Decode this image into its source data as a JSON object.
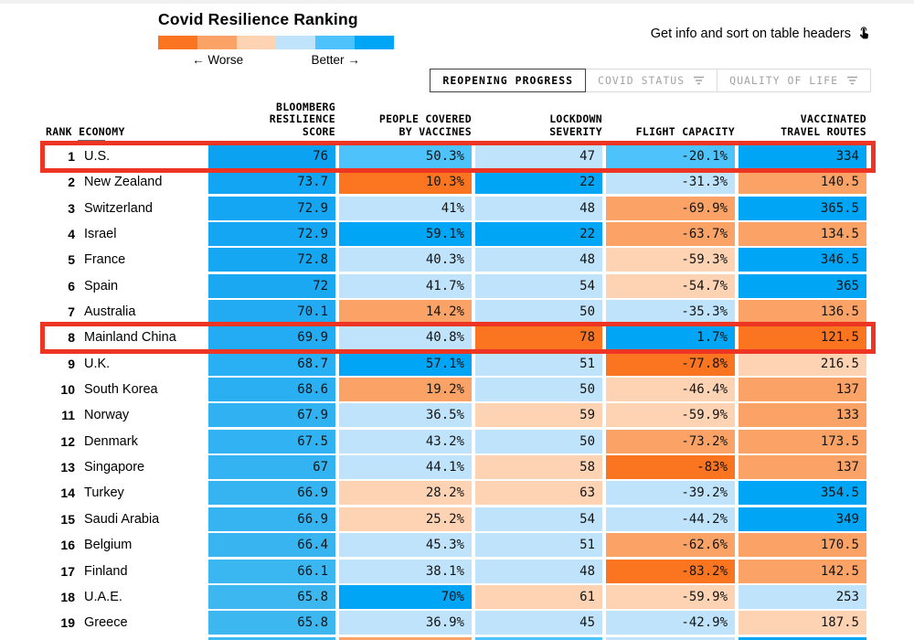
{
  "page": {
    "title": "Covid Resilience Ranking",
    "legend": {
      "worse_label": "← Worse",
      "better_label": "Better →",
      "colors": [
        "#fb7420",
        "#fba366",
        "#fdd3b4",
        "#bee3fb",
        "#4dc2fb",
        "#00a5f6"
      ]
    },
    "hint": {
      "text": "Get info and sort on table headers",
      "icon": "hand-pointer-icon"
    },
    "tabs": [
      {
        "label": "REOPENING PROGRESS",
        "active": true
      },
      {
        "label": "COVID STATUS",
        "active": false,
        "icon": "filter-icon"
      },
      {
        "label": "QUALITY OF LIFE",
        "active": false,
        "icon": "filter-icon"
      }
    ],
    "annotation_color": "#ee3524"
  },
  "table": {
    "headers": {
      "rank_economy": "RANK ECONOMY",
      "score": "BLOOMBERG\nRESILIENCE\nSCORE",
      "vaccines": "PEOPLE COVERED\nBY VACCINES",
      "lockdown": "LOCKDOWN\nSEVERITY",
      "flight": "FLIGHT CAPACITY",
      "routes": "VACCINATED\nTRAVEL ROUTES"
    },
    "rows": [
      {
        "rank": "1",
        "economy": "U.S.",
        "highlighted": true,
        "cells": [
          {
            "value": "76",
            "color": "#0ba2f2"
          },
          {
            "value": "50.3%",
            "color": "#4dc2fb"
          },
          {
            "value": "47",
            "color": "#bee3fb"
          },
          {
            "value": "-20.1%",
            "color": "#4dc2fb"
          },
          {
            "value": "334",
            "color": "#00a5f6"
          }
        ]
      },
      {
        "rank": "2",
        "economy": "New Zealand",
        "highlighted": false,
        "cells": [
          {
            "value": "73.7",
            "color": "#12a5f3"
          },
          {
            "value": "10.3%",
            "color": "#fb7420"
          },
          {
            "value": "22",
            "color": "#00a5f6"
          },
          {
            "value": "-31.3%",
            "color": "#bee3fb"
          },
          {
            "value": "140.5",
            "color": "#fba366"
          }
        ]
      },
      {
        "rank": "3",
        "economy": "Switzerland",
        "highlighted": false,
        "cells": [
          {
            "value": "72.9",
            "color": "#15a6f3"
          },
          {
            "value": "41%",
            "color": "#bee3fb"
          },
          {
            "value": "48",
            "color": "#bee3fb"
          },
          {
            "value": "-69.9%",
            "color": "#fba366"
          },
          {
            "value": "365.5",
            "color": "#00a5f6"
          }
        ]
      },
      {
        "rank": "4",
        "economy": "Israel",
        "highlighted": false,
        "cells": [
          {
            "value": "72.9",
            "color": "#15a6f3"
          },
          {
            "value": "59.1%",
            "color": "#00a5f6"
          },
          {
            "value": "22",
            "color": "#00a5f6"
          },
          {
            "value": "-63.7%",
            "color": "#fba366"
          },
          {
            "value": "134.5",
            "color": "#fba366"
          }
        ]
      },
      {
        "rank": "5",
        "economy": "France",
        "highlighted": false,
        "cells": [
          {
            "value": "72.8",
            "color": "#16a7f3"
          },
          {
            "value": "40.3%",
            "color": "#bee3fb"
          },
          {
            "value": "48",
            "color": "#bee3fb"
          },
          {
            "value": "-59.3%",
            "color": "#fdd3b4"
          },
          {
            "value": "346.5",
            "color": "#00a5f6"
          }
        ]
      },
      {
        "rank": "6",
        "economy": "Spain",
        "highlighted": false,
        "cells": [
          {
            "value": "72",
            "color": "#1aa8f3"
          },
          {
            "value": "41.7%",
            "color": "#bee3fb"
          },
          {
            "value": "54",
            "color": "#bee3fb"
          },
          {
            "value": "-54.7%",
            "color": "#fdd3b4"
          },
          {
            "value": "365",
            "color": "#00a5f6"
          }
        ]
      },
      {
        "rank": "7",
        "economy": "Australia",
        "highlighted": false,
        "cells": [
          {
            "value": "70.1",
            "color": "#22abf3"
          },
          {
            "value": "14.2%",
            "color": "#fba366"
          },
          {
            "value": "50",
            "color": "#bee3fb"
          },
          {
            "value": "-35.3%",
            "color": "#bee3fb"
          },
          {
            "value": "136.5",
            "color": "#fba366"
          }
        ]
      },
      {
        "rank": "8",
        "economy": "Mainland China",
        "highlighted": true,
        "cells": [
          {
            "value": "69.9",
            "color": "#23acf3"
          },
          {
            "value": "40.8%",
            "color": "#bee3fb"
          },
          {
            "value": "78",
            "color": "#fb7420"
          },
          {
            "value": "1.7%",
            "color": "#00a5f6"
          },
          {
            "value": "121.5",
            "color": "#fb7420"
          }
        ]
      },
      {
        "rank": "9",
        "economy": "U.K.",
        "highlighted": false,
        "cells": [
          {
            "value": "68.7",
            "color": "#29aff3"
          },
          {
            "value": "57.1%",
            "color": "#00a5f6"
          },
          {
            "value": "51",
            "color": "#bee3fb"
          },
          {
            "value": "-77.8%",
            "color": "#fb7420"
          },
          {
            "value": "216.5",
            "color": "#fdd3b4"
          }
        ]
      },
      {
        "rank": "10",
        "economy": "South Korea",
        "highlighted": false,
        "cells": [
          {
            "value": "68.6",
            "color": "#2aaff3"
          },
          {
            "value": "19.2%",
            "color": "#fba366"
          },
          {
            "value": "50",
            "color": "#bee3fb"
          },
          {
            "value": "-46.4%",
            "color": "#fdd3b4"
          },
          {
            "value": "137",
            "color": "#fba366"
          }
        ]
      },
      {
        "rank": "11",
        "economy": "Norway",
        "highlighted": false,
        "cells": [
          {
            "value": "67.9",
            "color": "#2fb1f2"
          },
          {
            "value": "36.5%",
            "color": "#bee3fb"
          },
          {
            "value": "59",
            "color": "#fdd3b4"
          },
          {
            "value": "-59.9%",
            "color": "#fdd3b4"
          },
          {
            "value": "133",
            "color": "#fba366"
          }
        ]
      },
      {
        "rank": "12",
        "economy": "Denmark",
        "highlighted": false,
        "cells": [
          {
            "value": "67.5",
            "color": "#31b2f2"
          },
          {
            "value": "43.2%",
            "color": "#bee3fb"
          },
          {
            "value": "50",
            "color": "#bee3fb"
          },
          {
            "value": "-73.2%",
            "color": "#fba366"
          },
          {
            "value": "173.5",
            "color": "#fba366"
          }
        ]
      },
      {
        "rank": "13",
        "economy": "Singapore",
        "highlighted": false,
        "cells": [
          {
            "value": "67",
            "color": "#34b3f2"
          },
          {
            "value": "44.1%",
            "color": "#bee3fb"
          },
          {
            "value": "58",
            "color": "#fdd3b4"
          },
          {
            "value": "-83%",
            "color": "#fb7420"
          },
          {
            "value": "137",
            "color": "#fba366"
          }
        ]
      },
      {
        "rank": "14",
        "economy": "Turkey",
        "highlighted": false,
        "cells": [
          {
            "value": "66.9",
            "color": "#35b4f1"
          },
          {
            "value": "28.2%",
            "color": "#fdd3b4"
          },
          {
            "value": "63",
            "color": "#fdd3b4"
          },
          {
            "value": "-39.2%",
            "color": "#bee3fb"
          },
          {
            "value": "354.5",
            "color": "#00a5f6"
          }
        ]
      },
      {
        "rank": "15",
        "economy": "Saudi Arabia",
        "highlighted": false,
        "cells": [
          {
            "value": "66.9",
            "color": "#35b4f1"
          },
          {
            "value": "25.2%",
            "color": "#fdd3b4"
          },
          {
            "value": "54",
            "color": "#bee3fb"
          },
          {
            "value": "-44.2%",
            "color": "#bee3fb"
          },
          {
            "value": "349",
            "color": "#00a5f6"
          }
        ]
      },
      {
        "rank": "16",
        "economy": "Belgium",
        "highlighted": false,
        "cells": [
          {
            "value": "66.4",
            "color": "#38b5f1"
          },
          {
            "value": "45.3%",
            "color": "#bee3fb"
          },
          {
            "value": "51",
            "color": "#bee3fb"
          },
          {
            "value": "-62.6%",
            "color": "#fba366"
          },
          {
            "value": "170.5",
            "color": "#fba366"
          }
        ]
      },
      {
        "rank": "17",
        "economy": "Finland",
        "highlighted": false,
        "cells": [
          {
            "value": "66.1",
            "color": "#3ab6f1"
          },
          {
            "value": "38.1%",
            "color": "#bee3fb"
          },
          {
            "value": "48",
            "color": "#bee3fb"
          },
          {
            "value": "-83.2%",
            "color": "#fb7420"
          },
          {
            "value": "142.5",
            "color": "#fba366"
          }
        ]
      },
      {
        "rank": "18",
        "economy": "U.A.E.",
        "highlighted": false,
        "cells": [
          {
            "value": "65.8",
            "color": "#3cb7f0"
          },
          {
            "value": "70%",
            "color": "#00a5f6"
          },
          {
            "value": "61",
            "color": "#fdd3b4"
          },
          {
            "value": "-59.9%",
            "color": "#fdd3b4"
          },
          {
            "value": "253",
            "color": "#bee3fb"
          }
        ]
      },
      {
        "rank": "19",
        "economy": "Greece",
        "highlighted": false,
        "cells": [
          {
            "value": "65.8",
            "color": "#3cb7f0"
          },
          {
            "value": "36.9%",
            "color": "#bee3fb"
          },
          {
            "value": "45",
            "color": "#bee3fb"
          },
          {
            "value": "-42.9%",
            "color": "#bee3fb"
          },
          {
            "value": "187.5",
            "color": "#fdd3b4"
          }
        ]
      },
      {
        "rank": "",
        "economy": "",
        "highlighted": false,
        "cutoff": true,
        "cells": [
          {
            "value": "",
            "color": "#3eb8f0"
          },
          {
            "value": "",
            "color": "#fba366"
          },
          {
            "value": "",
            "color": "#4dc2fb"
          },
          {
            "value": "",
            "color": "#bee3fb"
          },
          {
            "value": "",
            "color": "#00a5f6"
          }
        ]
      }
    ]
  },
  "chart_data": {
    "type": "table",
    "title": "Covid Resilience Ranking",
    "legend": {
      "left": "Worse",
      "right": "Better"
    },
    "columns": [
      "Rank",
      "Economy",
      "Bloomberg Resilience Score",
      "People Covered by Vaccines",
      "Lockdown Severity",
      "Flight Capacity",
      "Vaccinated Travel Routes"
    ],
    "rows": [
      [
        1,
        "U.S.",
        76,
        "50.3%",
        47,
        "-20.1%",
        334
      ],
      [
        2,
        "New Zealand",
        73.7,
        "10.3%",
        22,
        "-31.3%",
        140.5
      ],
      [
        3,
        "Switzerland",
        72.9,
        "41%",
        48,
        "-69.9%",
        365.5
      ],
      [
        4,
        "Israel",
        72.9,
        "59.1%",
        22,
        "-63.7%",
        134.5
      ],
      [
        5,
        "France",
        72.8,
        "40.3%",
        48,
        "-59.3%",
        346.5
      ],
      [
        6,
        "Spain",
        72,
        "41.7%",
        54,
        "-54.7%",
        365
      ],
      [
        7,
        "Australia",
        70.1,
        "14.2%",
        50,
        "-35.3%",
        136.5
      ],
      [
        8,
        "Mainland China",
        69.9,
        "40.8%",
        78,
        "1.7%",
        121.5
      ],
      [
        9,
        "U.K.",
        68.7,
        "57.1%",
        51,
        "-77.8%",
        216.5
      ],
      [
        10,
        "South Korea",
        68.6,
        "19.2%",
        50,
        "-46.4%",
        137
      ],
      [
        11,
        "Norway",
        67.9,
        "36.5%",
        59,
        "-59.9%",
        133
      ],
      [
        12,
        "Denmark",
        67.5,
        "43.2%",
        50,
        "-73.2%",
        173.5
      ],
      [
        13,
        "Singapore",
        67,
        "44.1%",
        58,
        "-83%",
        137
      ],
      [
        14,
        "Turkey",
        66.9,
        "28.2%",
        63,
        "-39.2%",
        354.5
      ],
      [
        15,
        "Saudi Arabia",
        66.9,
        "25.2%",
        54,
        "-44.2%",
        349
      ],
      [
        16,
        "Belgium",
        66.4,
        "45.3%",
        51,
        "-62.6%",
        170.5
      ],
      [
        17,
        "Finland",
        66.1,
        "38.1%",
        48,
        "-83.2%",
        142.5
      ],
      [
        18,
        "U.A.E.",
        65.8,
        "70%",
        61,
        "-59.9%",
        253
      ],
      [
        19,
        "Greece",
        65.8,
        "36.9%",
        45,
        "-42.9%",
        187.5
      ]
    ],
    "highlighted_rows": [
      1,
      8
    ]
  }
}
